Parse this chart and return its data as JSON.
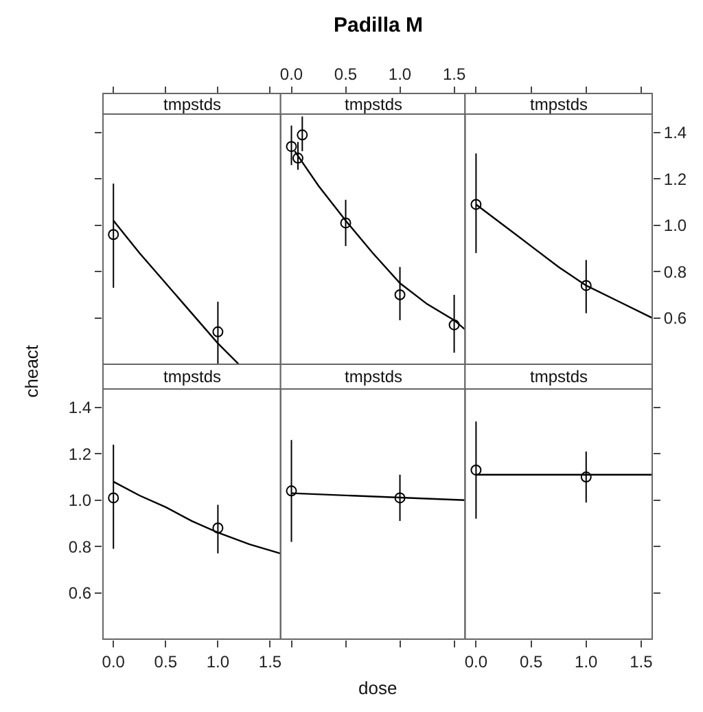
{
  "chart_data": [
    {
      "type": "scatter",
      "title": "tmpstds",
      "annotations": [
        "Padilla M"
      ],
      "xlim": [
        -0.1,
        1.6
      ],
      "ylim": [
        0.4,
        1.48
      ],
      "tick_labels": false,
      "xticks": [
        {
          "value": 0,
          "label": null
        },
        {
          "value": 0.5,
          "label": null
        },
        {
          "value": 1,
          "label": null
        },
        {
          "value": 1.5,
          "label": null
        }
      ],
      "yticks": [
        {
          "value": 0.6,
          "label": null
        },
        {
          "value": 0.8,
          "label": null
        },
        {
          "value": 1.0,
          "label": null
        },
        {
          "value": 1.2,
          "label": null
        },
        {
          "value": 1.4,
          "label": null
        }
      ],
      "series": [
        {
          "color": "#000000",
          "marker": "circle",
          "x": [
            0,
            1
          ],
          "values": [
            0.96,
            0.54
          ],
          "errors": [
            [
              0.73,
              1.18
            ],
            [
              0.4,
              0.67
            ]
          ]
        },
        {
          "type": "line",
          "color": "#000000",
          "x": [
            0,
            0.25,
            0.5,
            0.75,
            1,
            1.2
          ],
          "values": [
            1.02,
            0.88,
            0.75,
            0.62,
            0.49,
            0.4
          ]
        }
      ]
    },
    {
      "type": "scatter",
      "title": "tmpstds",
      "xlim": [
        -0.1,
        1.6
      ],
      "ylim": [
        0.4,
        1.48
      ],
      "tick_labels": "x",
      "xticks": [
        {
          "value": 0,
          "label": "0.0"
        },
        {
          "value": 0.5,
          "label": "0.5"
        },
        {
          "value": 1,
          "label": "1.0"
        },
        {
          "value": 1.5,
          "label": "1.5"
        }
      ],
      "series": [
        {
          "color": "#000000",
          "marker": "circle",
          "x": [
            0,
            0.06,
            0.1,
            0.5,
            1,
            1.5
          ],
          "values": [
            1.34,
            1.29,
            1.39,
            1.01,
            0.7,
            0.57
          ],
          "errors": [
            [
              1.26,
              1.43
            ],
            [
              1.24,
              1.36
            ],
            [
              1.32,
              1.47
            ],
            [
              0.91,
              1.11
            ],
            [
              0.59,
              0.82
            ],
            [
              0.45,
              0.7
            ]
          ]
        },
        {
          "type": "line",
          "color": "#000000",
          "x": [
            0.03,
            0.25,
            0.5,
            0.75,
            1,
            1.25,
            1.5,
            1.6
          ],
          "values": [
            1.32,
            1.17,
            1.02,
            0.88,
            0.75,
            0.66,
            0.59,
            0.55
          ]
        }
      ]
    },
    {
      "type": "scatter",
      "title": "tmpstds",
      "xlim": [
        -0.1,
        1.6
      ],
      "ylim": [
        0.4,
        1.48
      ],
      "tick_labels": "y",
      "xticks": [
        {
          "value": 0,
          "label": null
        },
        {
          "value": 0.5,
          "label": null
        },
        {
          "value": 1,
          "label": null
        },
        {
          "value": 1.5,
          "label": null
        }
      ],
      "yticks": [
        0.6,
        0.8,
        {
          "value": 1.0,
          "label": "1.0"
        },
        1.2,
        1.4
      ],
      "series": [
        {
          "color": "#000000",
          "marker": "circle",
          "x": [
            0,
            1
          ],
          "values": [
            1.09,
            0.74
          ],
          "errors": [
            [
              0.88,
              1.31
            ],
            [
              0.62,
              0.85
            ]
          ]
        },
        {
          "type": "line",
          "color": "#000000",
          "x": [
            0,
            0.25,
            0.5,
            0.75,
            1,
            1.3,
            1.6
          ],
          "values": [
            1.09,
            1.0,
            0.91,
            0.82,
            0.74,
            0.67,
            0.6
          ]
        }
      ]
    },
    {
      "type": "scatter",
      "title": "tmpstds",
      "xlabel": "dose",
      "ylabel": "cheact",
      "xlim": [
        -0.1,
        1.6
      ],
      "ylim": [
        0.4,
        1.48
      ],
      "xticks": [
        {
          "value": 0,
          "label": "0.0"
        },
        {
          "value": 0.5,
          "label": "0.5"
        },
        {
          "value": 1,
          "label": "1.0"
        },
        {
          "value": 1.5,
          "label": "1.5"
        }
      ],
      "yticks": [
        0.6,
        0.8,
        {
          "value": 1.0,
          "label": "1.0"
        },
        1.2,
        1.4
      ],
      "series": [
        {
          "color": "#000000",
          "marker": "circle",
          "x": [
            0,
            1
          ],
          "values": [
            1.01,
            0.88
          ],
          "errors": [
            [
              0.79,
              1.24
            ],
            [
              0.77,
              0.98
            ]
          ]
        },
        {
          "type": "line",
          "color": "#000000",
          "x": [
            0,
            0.25,
            0.5,
            0.75,
            1,
            1.3,
            1.6
          ],
          "values": [
            1.08,
            1.02,
            0.97,
            0.91,
            0.86,
            0.81,
            0.77
          ]
        }
      ]
    },
    {
      "type": "scatter",
      "title": "tmpstds",
      "xlim": [
        -0.1,
        1.6
      ],
      "ylim": [
        0.4,
        1.48
      ],
      "tick_labels": false,
      "xticks": [
        {
          "value": 0,
          "label": null
        },
        {
          "value": 0.5,
          "label": null
        },
        {
          "value": 1,
          "label": null
        },
        {
          "value": 1.5,
          "label": null
        }
      ],
      "series": [
        {
          "color": "#000000",
          "marker": "circle",
          "x": [
            0,
            1
          ],
          "values": [
            1.04,
            1.01
          ],
          "errors": [
            [
              0.82,
              1.26
            ],
            [
              0.91,
              1.11
            ]
          ]
        },
        {
          "type": "line",
          "color": "#000000",
          "x": [
            0,
            1.6
          ],
          "values": [
            1.03,
            1.0
          ]
        }
      ]
    },
    {
      "type": "scatter",
      "title": "tmpstds",
      "xlim": [
        -0.1,
        1.6
      ],
      "ylim": [
        0.4,
        1.48
      ],
      "tick_labels": "x",
      "xticks": [
        {
          "value": 0,
          "label": "0.0"
        },
        {
          "value": 0.5,
          "label": "0.5"
        },
        {
          "value": 1,
          "label": "1.0"
        },
        {
          "value": 1.5,
          "label": "1.5"
        }
      ],
      "yticks": [
        {
          "value": 0.6,
          "label": null
        },
        {
          "value": 0.8,
          "label": null
        },
        {
          "value": 1.0,
          "label": null
        },
        {
          "value": 1.2,
          "label": null
        },
        {
          "value": 1.4,
          "label": null
        }
      ],
      "series": [
        {
          "color": "#000000",
          "marker": "circle",
          "x": [
            0,
            1
          ],
          "values": [
            1.13,
            1.1
          ],
          "errors": [
            [
              0.92,
              1.34
            ],
            [
              0.99,
              1.21
            ]
          ]
        },
        {
          "type": "line",
          "color": "#000000",
          "x": [
            0,
            1.6
          ],
          "values": [
            1.11,
            1.11
          ]
        }
      ]
    }
  ]
}
